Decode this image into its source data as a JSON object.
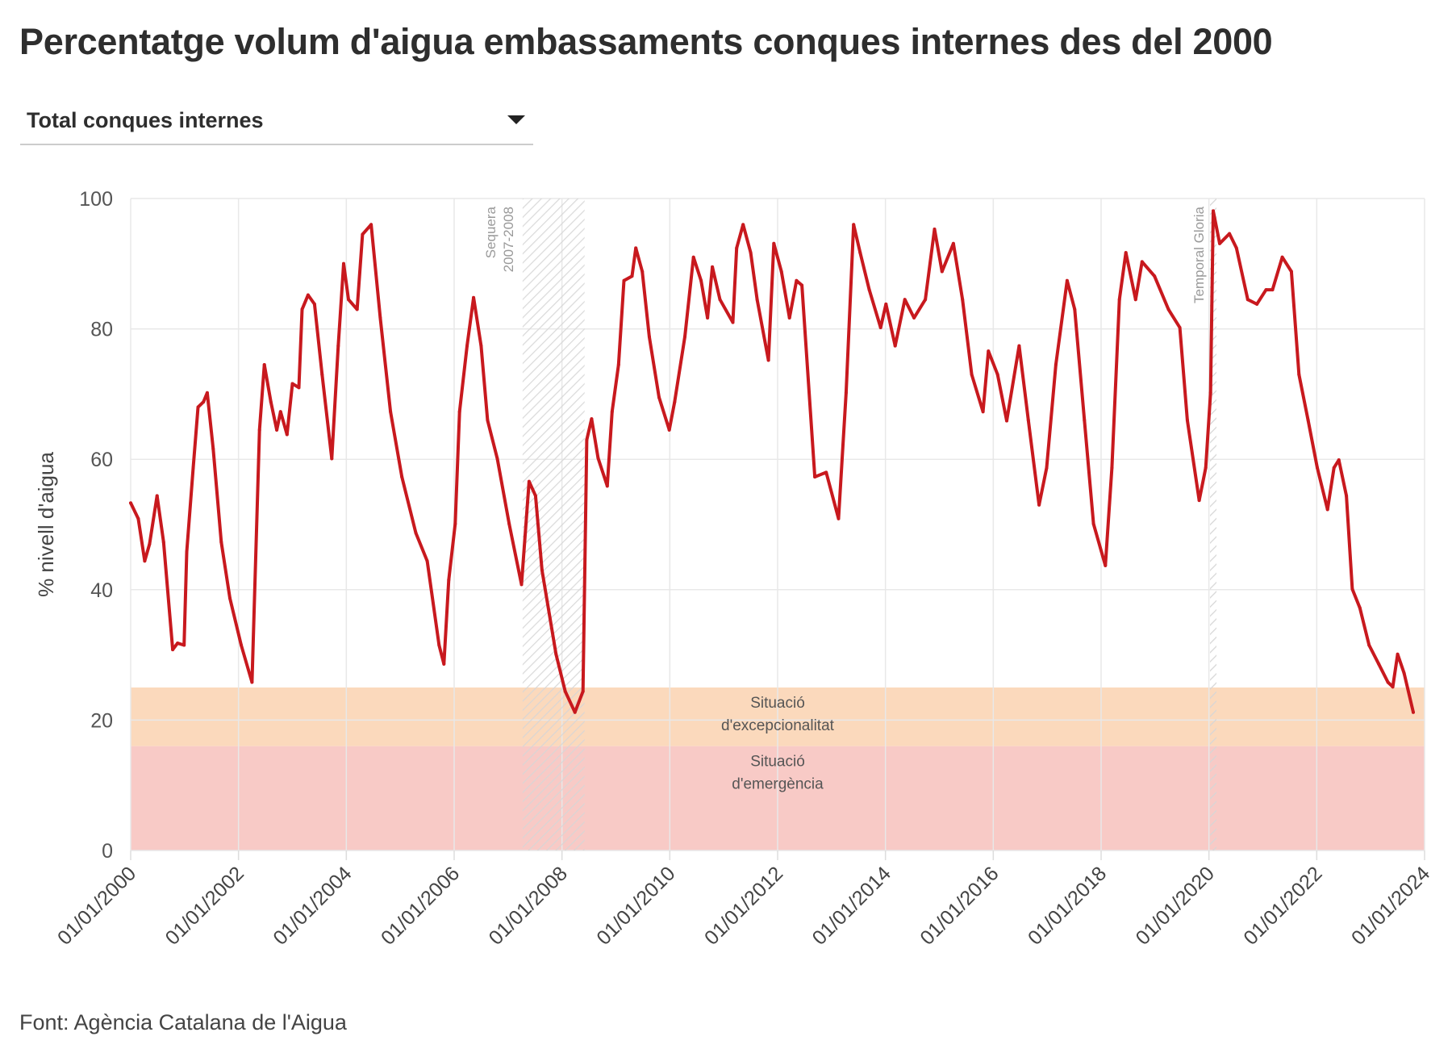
{
  "title": "Percentatge volum d'aigua embassaments conques internes des del 2000",
  "dropdown": {
    "selected": "Total conques internes",
    "icon": "triangle-down-icon"
  },
  "source": "Font: Agència Catalana de l'Aigua",
  "colors": {
    "line": "#c8191e",
    "band_excepcionalitat": "#fbd9bc",
    "band_emergencia": "#f8cac6",
    "grid": "#e8e8e8",
    "hatch": "#d9d9d9"
  },
  "chart_data": {
    "type": "line",
    "title": "Percentatge volum d'aigua embassaments conques internes des del 2000",
    "xlabel": "",
    "ylabel": "% nivell d'aigua",
    "xlim": [
      2000,
      2024
    ],
    "ylim": [
      0,
      100
    ],
    "grid": true,
    "yticks": [
      0,
      20,
      40,
      60,
      80,
      100
    ],
    "xticks": [
      {
        "value": 2000,
        "label": "01/01/2000"
      },
      {
        "value": 2002,
        "label": "01/01/2002"
      },
      {
        "value": 2004,
        "label": "01/01/2004"
      },
      {
        "value": 2006,
        "label": "01/01/2006"
      },
      {
        "value": 2008,
        "label": "01/01/2008"
      },
      {
        "value": 2010,
        "label": "01/01/2010"
      },
      {
        "value": 2012,
        "label": "01/01/2012"
      },
      {
        "value": 2014,
        "label": "01/01/2014"
      },
      {
        "value": 2016,
        "label": "01/01/2016"
      },
      {
        "value": 2018,
        "label": "01/01/2018"
      },
      {
        "value": 2020,
        "label": "01/01/2020"
      },
      {
        "value": 2022,
        "label": "01/01/2022"
      },
      {
        "value": 2024,
        "label": "01/01/2024"
      }
    ],
    "bands": [
      {
        "name": "excepcionalitat",
        "from": 16,
        "to": 25,
        "label_lines": [
          "Situació",
          "d'excepcionalitat"
        ]
      },
      {
        "name": "emergencia",
        "from": 0,
        "to": 16,
        "label_lines": [
          "Situació",
          "d'emergència"
        ]
      }
    ],
    "annotations": [
      {
        "name": "sequera",
        "type": "range",
        "from": 2007.27,
        "to": 2008.42,
        "label_lines": [
          "Sequera",
          "2007-2008"
        ]
      },
      {
        "name": "temporal-gloria",
        "type": "line",
        "at": 2020.08,
        "label_lines": [
          "Temporal Gloria"
        ]
      }
    ],
    "series": [
      {
        "name": "Total conques internes",
        "x": [
          2000.0,
          2000.14,
          2000.26,
          2000.35,
          2000.49,
          2000.61,
          2000.78,
          2000.87,
          2000.99,
          2001.04,
          2001.16,
          2001.25,
          2001.35,
          2001.42,
          2001.53,
          2001.68,
          2001.84,
          2002.05,
          2002.25,
          2002.39,
          2002.48,
          2002.6,
          2002.71,
          2002.78,
          2002.9,
          2003.0,
          2003.12,
          2003.18,
          2003.29,
          2003.41,
          2003.55,
          2003.73,
          2003.85,
          2003.95,
          2004.04,
          2004.2,
          2004.3,
          2004.46,
          2004.63,
          2004.82,
          2005.03,
          2005.29,
          2005.5,
          2005.72,
          2005.81,
          2005.9,
          2006.02,
          2006.1,
          2006.24,
          2006.36,
          2006.5,
          2006.62,
          2006.8,
          2007.02,
          2007.25,
          2007.39,
          2007.51,
          2007.63,
          2007.89,
          2008.06,
          2008.24,
          2008.39,
          2008.46,
          2008.55,
          2008.67,
          2008.84,
          2008.93,
          2009.05,
          2009.15,
          2009.3,
          2009.37,
          2009.49,
          2009.62,
          2009.8,
          2009.99,
          2010.09,
          2010.28,
          2010.44,
          2010.58,
          2010.7,
          2010.79,
          2010.93,
          2011.17,
          2011.24,
          2011.36,
          2011.5,
          2011.62,
          2011.83,
          2011.93,
          2012.07,
          2012.22,
          2012.35,
          2012.45,
          2012.69,
          2012.9,
          2013.13,
          2013.27,
          2013.41,
          2013.53,
          2013.7,
          2013.91,
          2014.01,
          2014.18,
          2014.36,
          2014.53,
          2014.74,
          2014.91,
          2015.05,
          2015.26,
          2015.43,
          2015.6,
          2015.81,
          2015.91,
          2016.08,
          2016.25,
          2016.48,
          2016.65,
          2016.85,
          2016.99,
          2017.16,
          2017.37,
          2017.51,
          2017.69,
          2017.86,
          2018.08,
          2018.2,
          2018.34,
          2018.46,
          2018.64,
          2018.76,
          2018.99,
          2019.25,
          2019.46,
          2019.6,
          2019.82,
          2019.94,
          2020.03,
          2020.08,
          2020.2,
          2020.38,
          2020.51,
          2020.72,
          2020.89,
          2021.06,
          2021.18,
          2021.36,
          2021.53,
          2021.67,
          2021.84,
          2022.01,
          2022.2,
          2022.32,
          2022.41,
          2022.55,
          2022.66,
          2022.8,
          2022.97,
          2023.15,
          2023.32,
          2023.41,
          2023.5,
          2023.62,
          2023.79
        ],
        "y": [
          53.3,
          50.9,
          44.4,
          47,
          54.4,
          47.3,
          30.8,
          31.8,
          31.5,
          45.8,
          58.7,
          68,
          68.8,
          70.2,
          61.6,
          47.3,
          38.7,
          31.5,
          25.8,
          64.5,
          74.5,
          68.8,
          64.5,
          67.3,
          63.8,
          71.6,
          71,
          83,
          85.2,
          83.8,
          73,
          60.1,
          77.4,
          90,
          84.5,
          83,
          94.5,
          96,
          81.7,
          67.3,
          57.3,
          48.7,
          44.4,
          31.5,
          28.6,
          41.5,
          50.1,
          67.3,
          77.4,
          84.8,
          77.4,
          66,
          60.1,
          50.1,
          40.8,
          56.6,
          54.4,
          43,
          30.1,
          24.4,
          21.2,
          24.4,
          63,
          66.2,
          60.2,
          55.9,
          67.3,
          74.5,
          87.4,
          88.1,
          92.4,
          88.8,
          78.8,
          69.5,
          64.5,
          68.8,
          78.8,
          91,
          87.4,
          81.7,
          89.5,
          84.5,
          81,
          92.4,
          96,
          91.7,
          84.5,
          75.2,
          93.1,
          88.8,
          81.7,
          87.4,
          86.7,
          57.3,
          58,
          50.9,
          70.2,
          96,
          91.7,
          86,
          80.2,
          83.8,
          77.4,
          84.5,
          81.7,
          84.5,
          95.3,
          88.8,
          93.1,
          84.5,
          73,
          67.3,
          76.6,
          73,
          65.9,
          77.4,
          66,
          53,
          58.7,
          74.5,
          87.4,
          83,
          66,
          50.1,
          43.7,
          58.7,
          84.5,
          91.7,
          84.5,
          90.3,
          88.1,
          83,
          80.2,
          66,
          53.7,
          58.7,
          70.2,
          98.1,
          93.1,
          94.6,
          92.4,
          84.5,
          83.8,
          86,
          86,
          91,
          88.8,
          73,
          66,
          58.7,
          52.3,
          58.7,
          59.9,
          54.4,
          40.1,
          37.2,
          31.5,
          28.6,
          25.8,
          25.1,
          30.1,
          27.2,
          21.2
        ]
      }
    ]
  }
}
